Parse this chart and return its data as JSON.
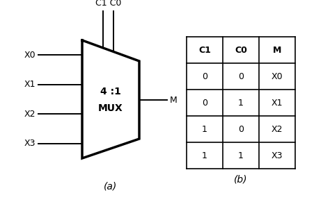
{
  "background_color": "#ffffff",
  "mux_label_top": "4 :1",
  "mux_label_bot": "MUX",
  "output_label": "M",
  "control_label": "C1 C0",
  "input_labels": [
    "X0",
    "X1",
    "X2",
    "X3"
  ],
  "caption_a": "(a)",
  "caption_b": "(b)",
  "table_headers": [
    "C1",
    "C0",
    "M"
  ],
  "table_rows": [
    [
      "0",
      "0",
      "X0"
    ],
    [
      "0",
      "1",
      "X1"
    ],
    [
      "1",
      "0",
      "X2"
    ],
    [
      "1",
      "1",
      "X3"
    ]
  ],
  "line_color": "#000000",
  "text_color": "#000000",
  "mux_lw": 2.5,
  "wire_lw": 1.4,
  "table_lw": 1.2,
  "font_size": 9,
  "label_font_size": 9,
  "caption_font_size": 10
}
